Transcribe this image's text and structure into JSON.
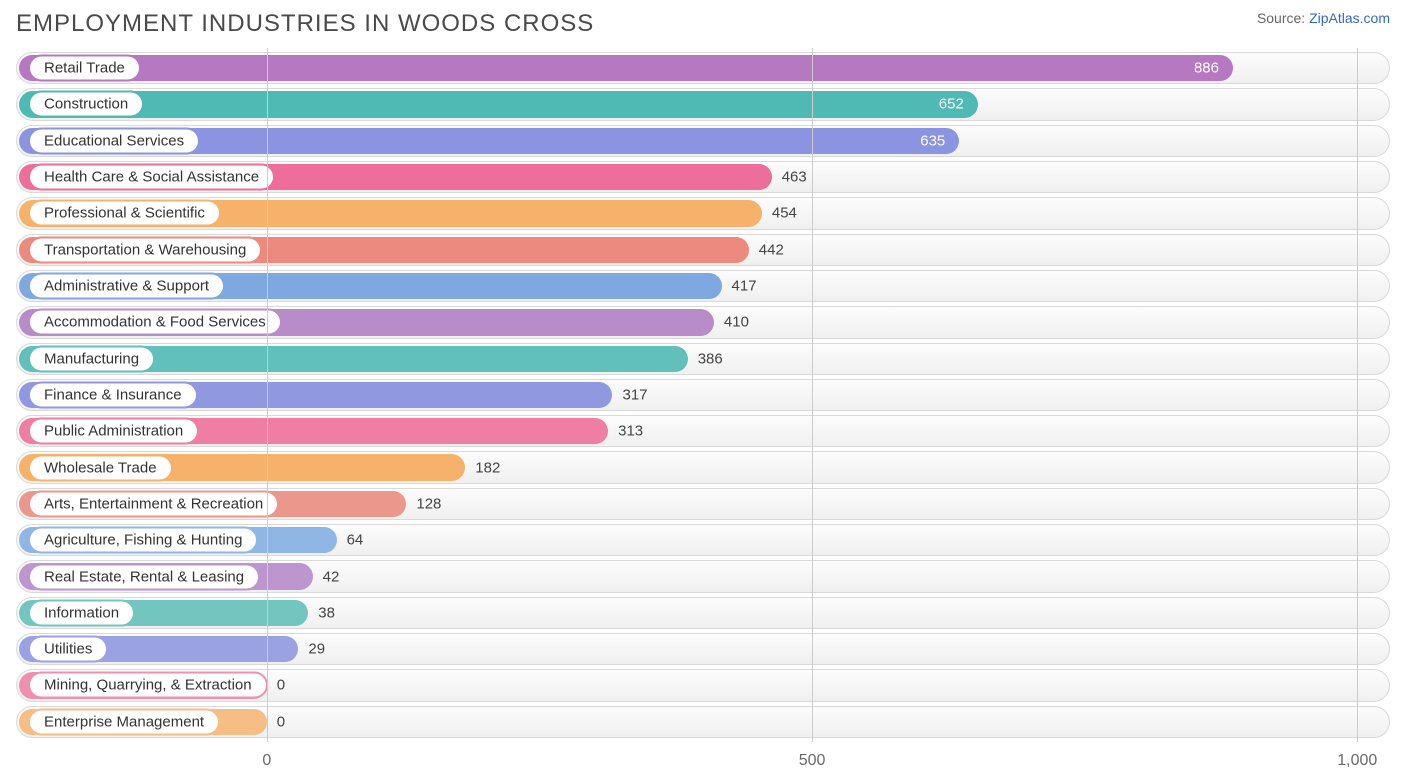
{
  "title": "EMPLOYMENT INDUSTRIES IN WOODS CROSS",
  "source_prefix": "Source: ",
  "source_name": "ZipAtlas.com",
  "chart": {
    "type": "horizontal-bar",
    "x_min": -230,
    "x_max": 1030,
    "ticks": [
      {
        "value": 0,
        "label": "0"
      },
      {
        "value": 500,
        "label": "500"
      },
      {
        "value": 1000,
        "label": "1,000"
      }
    ],
    "gridline_color": "#cccccc",
    "track_border_color": "#d9d9d9",
    "track_bg_top": "#fcfcfc",
    "track_bg_bottom": "#f0f0f0",
    "label_fontsize": 15,
    "value_fontsize": 15,
    "title_fontsize": 24,
    "bar_radius": 999,
    "row_gap": 0,
    "palette_note": "per-bar colors sampled from image",
    "bars": [
      {
        "label": "Retail Trade",
        "value": 886,
        "color": "#b678c0",
        "value_inside": true,
        "value_color": "#ffffff"
      },
      {
        "label": "Construction",
        "value": 652,
        "color": "#4fb9b3",
        "value_inside": true,
        "value_color": "#ffffff"
      },
      {
        "label": "Educational Services",
        "value": 635,
        "color": "#8a94e0",
        "value_inside": true,
        "value_color": "#ffffff"
      },
      {
        "label": "Health Care & Social Assistance",
        "value": 463,
        "color": "#ed6e9a",
        "value_inside": false,
        "value_color": "#444444"
      },
      {
        "label": "Professional & Scientific",
        "value": 454,
        "color": "#f6b26b",
        "value_inside": false,
        "value_color": "#444444"
      },
      {
        "label": "Transportation & Warehousing",
        "value": 442,
        "color": "#ec8a7d",
        "value_inside": false,
        "value_color": "#444444"
      },
      {
        "label": "Administrative & Support",
        "value": 417,
        "color": "#7fa8e0",
        "value_inside": false,
        "value_color": "#444444"
      },
      {
        "label": "Accommodation & Food Services",
        "value": 410,
        "color": "#b88bc9",
        "value_inside": false,
        "value_color": "#444444"
      },
      {
        "label": "Manufacturing",
        "value": 386,
        "color": "#62c0ba",
        "value_inside": false,
        "value_color": "#444444"
      },
      {
        "label": "Finance & Insurance",
        "value": 317,
        "color": "#9098e0",
        "value_inside": false,
        "value_color": "#444444"
      },
      {
        "label": "Public Administration",
        "value": 313,
        "color": "#ef7da4",
        "value_inside": false,
        "value_color": "#444444"
      },
      {
        "label": "Wholesale Trade",
        "value": 182,
        "color": "#f6b26b",
        "value_inside": false,
        "value_color": "#444444"
      },
      {
        "label": "Arts, Entertainment & Recreation",
        "value": 128,
        "color": "#ec978c",
        "value_inside": false,
        "value_color": "#444444"
      },
      {
        "label": "Agriculture, Fishing & Hunting",
        "value": 64,
        "color": "#8fb6e4",
        "value_inside": false,
        "value_color": "#444444"
      },
      {
        "label": "Real Estate, Rental & Leasing",
        "value": 42,
        "color": "#bd96cf",
        "value_inside": false,
        "value_color": "#444444"
      },
      {
        "label": "Information",
        "value": 38,
        "color": "#73c6c0",
        "value_inside": false,
        "value_color": "#444444"
      },
      {
        "label": "Utilities",
        "value": 29,
        "color": "#9aa2e4",
        "value_inside": false,
        "value_color": "#444444"
      },
      {
        "label": "Mining, Quarrying, & Extraction",
        "value": 0,
        "color": "#f08fb0",
        "value_inside": false,
        "value_color": "#444444"
      },
      {
        "label": "Enterprise Management",
        "value": 0,
        "color": "#f6bd85",
        "value_inside": false,
        "value_color": "#444444"
      }
    ]
  }
}
